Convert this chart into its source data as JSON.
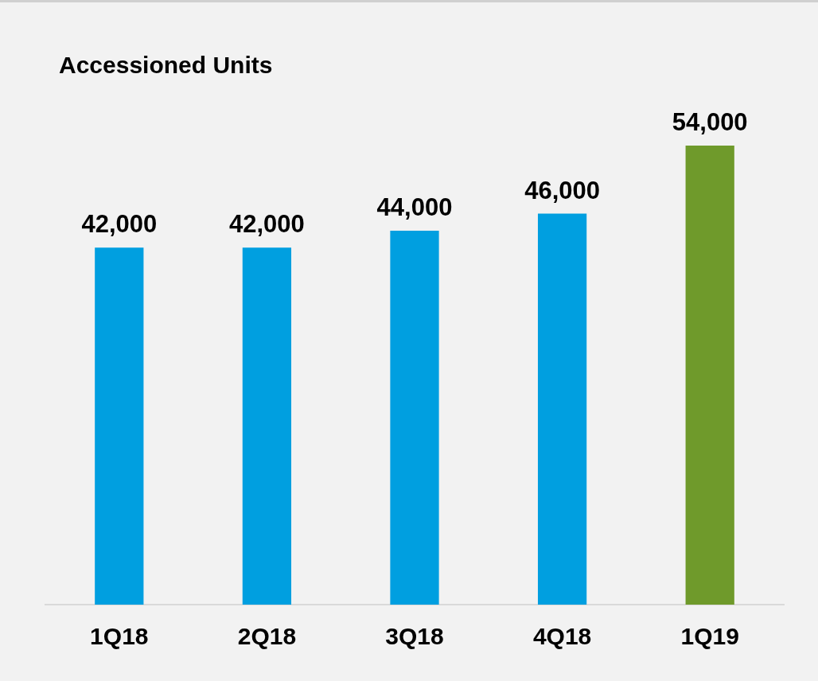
{
  "chart_data": {
    "type": "bar",
    "title": "Accessioned Units",
    "categories": [
      "1Q18",
      "2Q18",
      "3Q18",
      "4Q18",
      "1Q19"
    ],
    "values": [
      42000,
      42000,
      44000,
      46000,
      54000
    ],
    "colors": [
      "#009fe0",
      "#009fe0",
      "#009fe0",
      "#009fe0",
      "#6f9a2b"
    ],
    "value_labels": [
      "42,000",
      "42,000",
      "44,000",
      "46,000",
      "54,000"
    ],
    "grid": false,
    "legend": false
  }
}
